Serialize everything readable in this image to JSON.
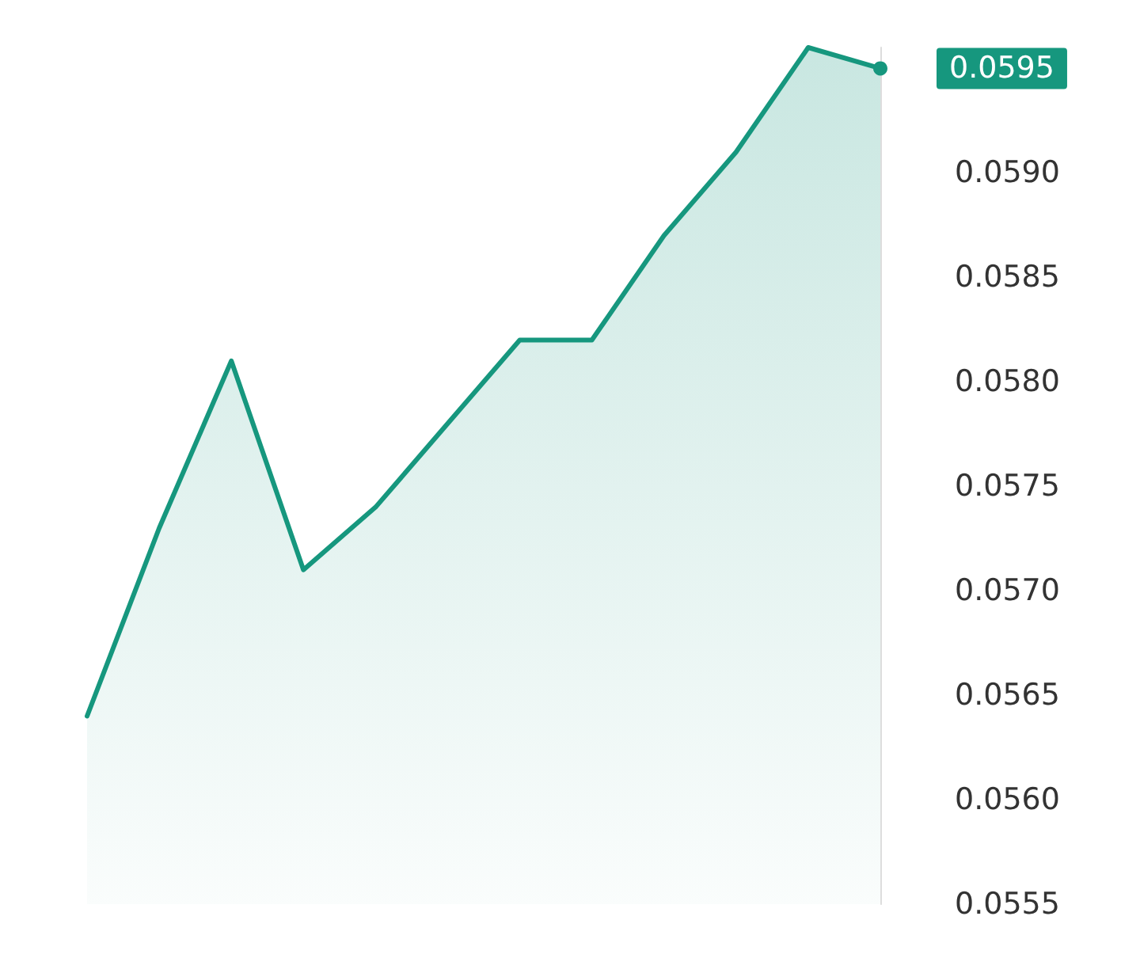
{
  "chart_data": {
    "type": "area",
    "categories": [
      null,
      null,
      null,
      null,
      null,
      null,
      null,
      null,
      null,
      null,
      null,
      null
    ],
    "series": [
      {
        "color": "#16977e",
        "values": [
          0.0564,
          0.0573,
          0.0581,
          0.0571,
          0.0574,
          0.0578,
          0.0582,
          0.0582,
          0.0587,
          0.0591,
          0.0596,
          0.0595
        ]
      }
    ],
    "annotations": [
      "0.0595"
    ],
    "yticks": [
      {
        "value": 0.0555,
        "label": "0.0555"
      },
      {
        "value": 0.056,
        "label": "0.0560"
      },
      {
        "value": 0.0565,
        "label": "0.0565"
      },
      {
        "value": 0.057,
        "label": "0.0570"
      },
      {
        "value": 0.0575,
        "label": "0.0575"
      },
      {
        "value": 0.058,
        "label": "0.0580"
      },
      {
        "value": 0.0585,
        "label": "0.0585"
      },
      {
        "value": 0.059,
        "label": "0.0590"
      }
    ],
    "ylim": [
      0.0555,
      0.0596
    ],
    "grid": false,
    "marker": "none",
    "line_style": "solid"
  }
}
